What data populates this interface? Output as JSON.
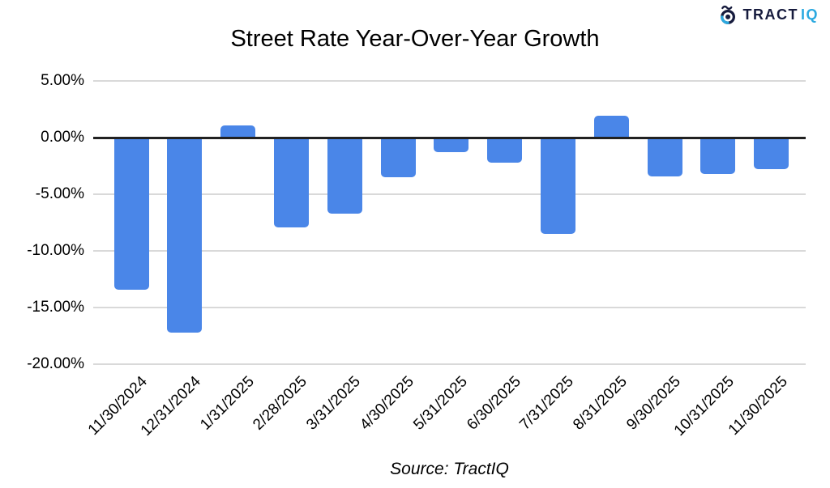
{
  "logo": {
    "brand_primary": "TRACT",
    "brand_secondary": "IQ",
    "primary_color": "#161b3d",
    "secondary_color": "#2ba9e0"
  },
  "chart_data": {
    "type": "bar",
    "title": "Street Rate Year-Over-Year Growth",
    "categories": [
      "11/30/2024",
      "12/31/2024",
      "1/31/2025",
      "2/28/2025",
      "3/31/2025",
      "4/30/2025",
      "5/31/2025",
      "6/30/2025",
      "7/31/2025",
      "8/31/2025",
      "9/30/2025",
      "10/31/2025",
      "11/30/2025"
    ],
    "values": [
      -13.4,
      -17.2,
      1.1,
      -7.9,
      -6.7,
      -3.5,
      -1.3,
      -2.2,
      -8.5,
      1.9,
      -3.4,
      -3.2,
      -2.8
    ],
    "unit": "percent",
    "xlabel": "",
    "ylabel": "",
    "ylim": [
      -20,
      5
    ],
    "y_ticks": [
      "5.00%",
      "0.00%",
      "-5.00%",
      "-10.00%",
      "-15.00%",
      "-20.00%"
    ],
    "grid": true,
    "legend_position": "none",
    "bar_color": "#4a86e8",
    "gridline_color": "#d9d9d9",
    "zero_line_color": "#212121",
    "source_note": "Source: TractIQ"
  }
}
